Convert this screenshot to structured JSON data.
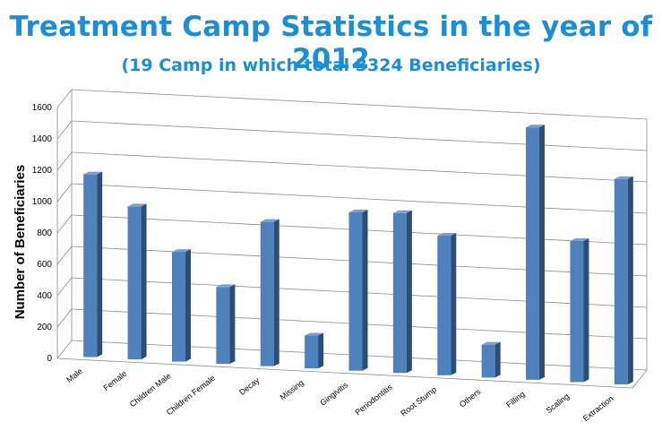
{
  "chart_data": {
    "type": "bar",
    "title": "Treatment Camp Statistics in the year of 2012",
    "subtitle": "(19 Camp in which total 3324 Beneficiaries)",
    "xlabel": "",
    "ylabel": "Number of Beneficiaries",
    "ylim": [
      0,
      1600
    ],
    "yticks": [
      "0",
      "200",
      "400",
      "600",
      "800",
      "1000",
      "1200",
      "1400",
      "1600"
    ],
    "grid": true,
    "categories": [
      "Male",
      "Female",
      "Children Male",
      "Children Female",
      "Decay",
      "Missing",
      "Gingivitis",
      "Periodontitis",
      "Root Stump",
      "Others",
      "Filling",
      "Scaling",
      "Extraction"
    ],
    "values": [
      1165,
      975,
      700,
      490,
      920,
      210,
      1010,
      1020,
      890,
      210,
      1610,
      900,
      1310
    ],
    "bar_color": "#4f81bd"
  }
}
